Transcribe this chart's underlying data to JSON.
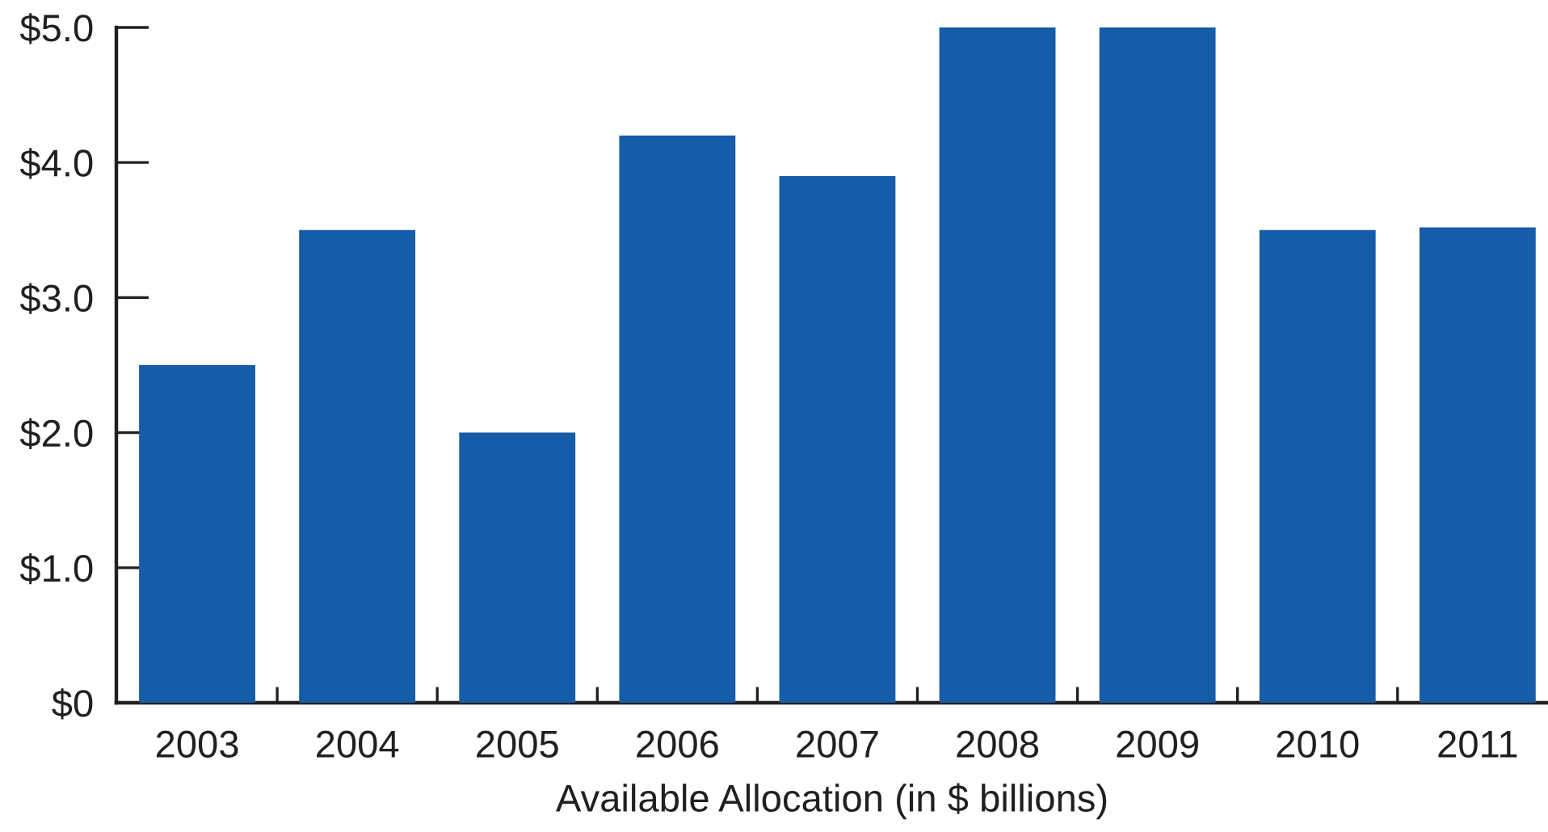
{
  "chart_data": {
    "type": "bar",
    "xlabel": "Available Allocation (in $ billions)",
    "categories": [
      "2003",
      "2004",
      "2005",
      "2006",
      "2007",
      "2008",
      "2009",
      "2010",
      "2011"
    ],
    "values": [
      2.5,
      3.5,
      2.0,
      4.2,
      3.9,
      5.0,
      5.0,
      3.5,
      3.52
    ],
    "color": "#155ca9",
    "ylim": [
      0,
      5
    ],
    "yticks": [
      {
        "value": 0,
        "label": "$0"
      },
      {
        "value": 1,
        "label": "$1.0"
      },
      {
        "value": 2,
        "label": "$2.0"
      },
      {
        "value": 3,
        "label": "$3.0"
      },
      {
        "value": 4,
        "label": "$4.0"
      },
      {
        "value": 5,
        "label": "$5.0"
      }
    ],
    "grid": false
  }
}
